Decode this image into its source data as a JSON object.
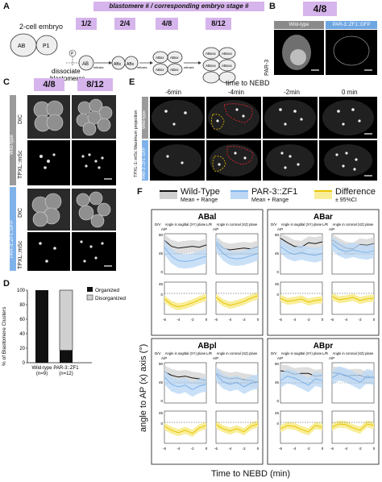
{
  "colors": {
    "pill": "#d6b4ec",
    "wildtype": "#9a9a9a",
    "mutant": "#7fb2ea",
    "mutant_band": "#bcd8f5",
    "diff": "#e9c400",
    "diff_band": "#f8ee9a",
    "dark": "#111111"
  },
  "panelA": {
    "letter": "A",
    "header": "blastomere # / corresponding embryo stage #",
    "stages": [
      "1/2",
      "2/4",
      "4/8",
      "8/12"
    ],
    "two_cell_label": "2-cell embryo",
    "cells_two": [
      "AB",
      "P1"
    ],
    "p_label": "P",
    "dissociate": "dissociate blastomeres",
    "mitosis": "mitosis",
    "cells_1": [
      "AB"
    ],
    "cells_2": [
      "ABx",
      "ABx"
    ],
    "cells_4": [
      "ABxx",
      "ABxx",
      "ABxx",
      "ABxx"
    ],
    "cells_8": [
      "ABxxx",
      "ABxxx",
      "ABxxx",
      "ABxxx"
    ]
  },
  "panelB": {
    "letter": "B",
    "stage": "4/8",
    "row_label": "PAR-3",
    "col_labels": [
      "Wild-type",
      "PAR-3::ZF1::GFP"
    ]
  },
  "panelC": {
    "letter": "C",
    "stages": [
      "4/8",
      "8/12"
    ],
    "wt_group": "Wild-type",
    "mut_group": "PAR-3::ZF1::GFP",
    "rows": [
      "DIC",
      "TPXL::mSc",
      "DIC",
      "TPXL::mSc"
    ]
  },
  "panelD": {
    "letter": "D",
    "ylabel": "% of Blastomere Clusters",
    "legend": [
      "Organized",
      "Disorganized"
    ],
    "bars": [
      {
        "label": "Wild-type",
        "n": "(n=9)",
        "organized": 100
      },
      {
        "label": "PAR-3::ZF1",
        "n": "(n=12)",
        "organized": 17
      }
    ],
    "yticks": [
      "0",
      "20",
      "40",
      "60",
      "80",
      "100"
    ]
  },
  "panelE": {
    "letter": "E",
    "title": "time to NEBD",
    "times": [
      "-6min",
      "-4min",
      "-2min",
      "0 min"
    ],
    "row_label_outer": "TPXL-1::mSc Maximum projection",
    "row_labels": [
      "Wild-type",
      "PAR-3::ZF1::GFP"
    ]
  },
  "panelF": {
    "letter": "F",
    "legend": [
      {
        "name": "Wild-Type",
        "sub": "Mean + Range"
      },
      {
        "name": "PAR-3::ZF1",
        "sub": "Mean + Range"
      },
      {
        "name": "Difference",
        "sub": "± 95%CI"
      }
    ],
    "ylabel": "angle to AP (x) axis (°)",
    "xlabel": "Time to NEBD (min)",
    "plane_labels": [
      "Angle in sagittal (XY) plane",
      "Angle in coronal (XZ) plane"
    ],
    "axis_tags": [
      "D/V",
      "A/P",
      "L/R",
      "A/P"
    ],
    "panels": [
      "ABal",
      "ABar",
      "ABpl",
      "ABpr"
    ],
    "top_yticks": [
      "90",
      "45",
      "0"
    ],
    "bottom_yticks": [
      "45",
      "0"
    ],
    "xticks": [
      "-6",
      "-4",
      "-2",
      "0"
    ]
  }
}
